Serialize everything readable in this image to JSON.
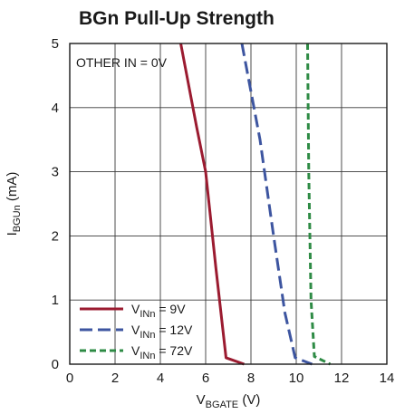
{
  "chart_data": {
    "type": "line",
    "title": "BGn Pull-Up Strength",
    "xlabel": {
      "main": "V",
      "sub": "BGATE",
      "unit": " (V)"
    },
    "ylabel": {
      "main": "I",
      "sub": "BGUn",
      "unit": " (mA)"
    },
    "xlim": [
      0,
      14
    ],
    "ylim": [
      0,
      5
    ],
    "xticks": [
      "0",
      "2",
      "4",
      "6",
      "8",
      "10",
      "12",
      "14"
    ],
    "yticks": [
      "0",
      "1",
      "2",
      "3",
      "4",
      "5"
    ],
    "grid": true,
    "legend_position": "bottom-left",
    "annotation": "OTHER IN = 0V",
    "series": [
      {
        "name_main": "V",
        "name_sub": "INn",
        "name_rest": " = 9V",
        "color": "#9b1b30",
        "dash": "solid",
        "x": [
          4.9,
          5.6,
          6.0,
          6.45,
          6.9,
          7.7
        ],
        "y": [
          5.0,
          3.7,
          3.0,
          1.5,
          0.1,
          0.0
        ]
      },
      {
        "name_main": "V",
        "name_sub": "INn",
        "name_rest": " = 12V",
        "color": "#3d55a0",
        "dash": "long-dash",
        "x": [
          7.6,
          8.4,
          9.0,
          9.5,
          9.95,
          10.7
        ],
        "y": [
          5.0,
          3.5,
          2.0,
          0.8,
          0.1,
          0.0
        ]
      },
      {
        "name_main": "V",
        "name_sub": "INn",
        "name_rest": " = 72V",
        "color": "#2e8b45",
        "dash": "short-dash",
        "x": [
          10.5,
          10.55,
          10.65,
          10.8,
          11.5
        ],
        "y": [
          5.0,
          3.0,
          1.0,
          0.12,
          0.0
        ]
      }
    ]
  }
}
